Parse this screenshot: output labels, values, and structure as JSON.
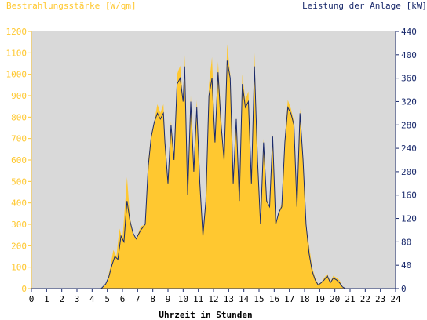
{
  "chart_data": {
    "type": "area",
    "title_left": "Bestrahlungsstärke [W/qm]",
    "title_right": "Leistung der Anlage [kW]",
    "xlabel": "Uhrzeit in Stunden",
    "x_ticks": [
      "0",
      "1",
      "2",
      "3",
      "4",
      "5",
      "6",
      "7",
      "8",
      "9",
      "10",
      "11",
      "12",
      "13",
      "14",
      "15",
      "16",
      "17",
      "18",
      "19",
      "20",
      "21",
      "22",
      "23",
      "24"
    ],
    "xlim": [
      0,
      24
    ],
    "ylim_left": [
      0,
      1200
    ],
    "ylim_right": [
      0,
      440
    ],
    "y_ticks_left": [
      "0",
      "100",
      "200",
      "300",
      "400",
      "500",
      "600",
      "700",
      "800",
      "900",
      "1000",
      "1100",
      "1200"
    ],
    "y_ticks_right": [
      "0",
      "40",
      "80",
      "120",
      "160",
      "200",
      "240",
      "280",
      "320",
      "360",
      "400",
      "440"
    ],
    "grid": false,
    "colors": {
      "irradiance": "#ffc830",
      "power": "#1a2a6c",
      "plot_bg": "#d9d9d9",
      "left_axis_text": "#ffc830",
      "right_axis_text": "#1a2a6c"
    },
    "series": [
      {
        "name": "Bestrahlungsstärke [W/qm]",
        "axis": "left",
        "kind": "area",
        "points": [
          [
            0,
            0
          ],
          [
            4.5,
            0
          ],
          [
            4.8,
            10
          ],
          [
            5.0,
            40
          ],
          [
            5.2,
            100
          ],
          [
            5.4,
            180
          ],
          [
            5.6,
            150
          ],
          [
            5.8,
            280
          ],
          [
            6.0,
            230
          ],
          [
            6.2,
            420
          ],
          [
            6.3,
            520
          ],
          [
            6.5,
            330
          ],
          [
            6.7,
            260
          ],
          [
            6.9,
            230
          ],
          [
            7.2,
            290
          ],
          [
            7.5,
            300
          ],
          [
            7.7,
            600
          ],
          [
            7.9,
            720
          ],
          [
            8.1,
            780
          ],
          [
            8.3,
            860
          ],
          [
            8.5,
            820
          ],
          [
            8.7,
            860
          ],
          [
            8.8,
            700
          ],
          [
            9.0,
            500
          ],
          [
            9.2,
            780
          ],
          [
            9.4,
            600
          ],
          [
            9.6,
            1000
          ],
          [
            9.8,
            1040
          ],
          [
            10.0,
            880
          ],
          [
            10.1,
            1090
          ],
          [
            10.3,
            450
          ],
          [
            10.5,
            900
          ],
          [
            10.7,
            550
          ],
          [
            10.9,
            880
          ],
          [
            11.1,
            500
          ],
          [
            11.3,
            250
          ],
          [
            11.5,
            400
          ],
          [
            11.7,
            950
          ],
          [
            11.9,
            1080
          ],
          [
            12.1,
            700
          ],
          [
            12.3,
            1060
          ],
          [
            12.5,
            800
          ],
          [
            12.7,
            600
          ],
          [
            12.9,
            1140
          ],
          [
            13.1,
            1000
          ],
          [
            13.3,
            500
          ],
          [
            13.5,
            800
          ],
          [
            13.7,
            400
          ],
          [
            13.9,
            1000
          ],
          [
            14.1,
            880
          ],
          [
            14.3,
            920
          ],
          [
            14.5,
            500
          ],
          [
            14.7,
            1100
          ],
          [
            14.9,
            600
          ],
          [
            15.1,
            300
          ],
          [
            15.3,
            700
          ],
          [
            15.5,
            420
          ],
          [
            15.7,
            380
          ],
          [
            15.9,
            720
          ],
          [
            16.1,
            300
          ],
          [
            16.3,
            350
          ],
          [
            16.5,
            400
          ],
          [
            16.7,
            700
          ],
          [
            16.9,
            880
          ],
          [
            17.1,
            840
          ],
          [
            17.3,
            780
          ],
          [
            17.5,
            400
          ],
          [
            17.7,
            840
          ],
          [
            17.9,
            600
          ],
          [
            18.1,
            300
          ],
          [
            18.3,
            200
          ],
          [
            18.5,
            100
          ],
          [
            18.7,
            50
          ],
          [
            18.9,
            20
          ],
          [
            19.1,
            30
          ],
          [
            19.3,
            50
          ],
          [
            19.5,
            70
          ],
          [
            19.7,
            30
          ],
          [
            19.9,
            60
          ],
          [
            20.1,
            50
          ],
          [
            20.3,
            40
          ],
          [
            20.5,
            10
          ],
          [
            20.7,
            0
          ],
          [
            24,
            0
          ]
        ]
      },
      {
        "name": "Leistung der Anlage [kW]",
        "axis": "right",
        "kind": "line",
        "points": [
          [
            0,
            0
          ],
          [
            4.6,
            0
          ],
          [
            4.9,
            8
          ],
          [
            5.1,
            20
          ],
          [
            5.3,
            40
          ],
          [
            5.5,
            55
          ],
          [
            5.7,
            50
          ],
          [
            5.9,
            90
          ],
          [
            6.1,
            80
          ],
          [
            6.3,
            150
          ],
          [
            6.5,
            115
          ],
          [
            6.7,
            95
          ],
          [
            6.9,
            85
          ],
          [
            7.2,
            100
          ],
          [
            7.5,
            110
          ],
          [
            7.7,
            210
          ],
          [
            7.9,
            260
          ],
          [
            8.1,
            285
          ],
          [
            8.3,
            300
          ],
          [
            8.5,
            290
          ],
          [
            8.7,
            300
          ],
          [
            8.8,
            250
          ],
          [
            9.0,
            180
          ],
          [
            9.2,
            280
          ],
          [
            9.4,
            220
          ],
          [
            9.6,
            350
          ],
          [
            9.8,
            360
          ],
          [
            10.0,
            320
          ],
          [
            10.1,
            380
          ],
          [
            10.3,
            160
          ],
          [
            10.5,
            320
          ],
          [
            10.7,
            200
          ],
          [
            10.9,
            310
          ],
          [
            11.1,
            180
          ],
          [
            11.3,
            90
          ],
          [
            11.5,
            150
          ],
          [
            11.7,
            330
          ],
          [
            11.9,
            360
          ],
          [
            12.1,
            250
          ],
          [
            12.3,
            370
          ],
          [
            12.5,
            280
          ],
          [
            12.7,
            220
          ],
          [
            12.9,
            390
          ],
          [
            13.1,
            360
          ],
          [
            13.3,
            180
          ],
          [
            13.5,
            290
          ],
          [
            13.7,
            150
          ],
          [
            13.9,
            350
          ],
          [
            14.1,
            310
          ],
          [
            14.3,
            320
          ],
          [
            14.5,
            180
          ],
          [
            14.7,
            380
          ],
          [
            14.9,
            220
          ],
          [
            15.1,
            110
          ],
          [
            15.3,
            250
          ],
          [
            15.5,
            150
          ],
          [
            15.7,
            140
          ],
          [
            15.9,
            260
          ],
          [
            16.1,
            110
          ],
          [
            16.3,
            130
          ],
          [
            16.5,
            140
          ],
          [
            16.7,
            250
          ],
          [
            16.9,
            310
          ],
          [
            17.1,
            300
          ],
          [
            17.3,
            280
          ],
          [
            17.5,
            140
          ],
          [
            17.7,
            300
          ],
          [
            17.9,
            220
          ],
          [
            18.1,
            110
          ],
          [
            18.3,
            60
          ],
          [
            18.5,
            30
          ],
          [
            18.7,
            15
          ],
          [
            18.9,
            6
          ],
          [
            19.1,
            10
          ],
          [
            19.3,
            15
          ],
          [
            19.5,
            22
          ],
          [
            19.7,
            10
          ],
          [
            19.9,
            18
          ],
          [
            20.1,
            15
          ],
          [
            20.3,
            10
          ],
          [
            20.5,
            3
          ],
          [
            20.7,
            0
          ],
          [
            24,
            0
          ]
        ]
      }
    ]
  }
}
